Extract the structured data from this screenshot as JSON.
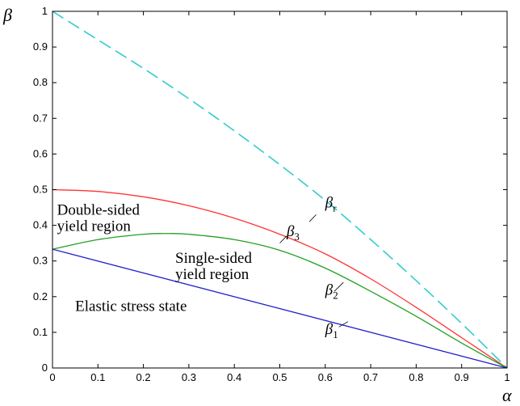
{
  "chart_data": {
    "type": "line",
    "xlabel": "α",
    "ylabel": "β",
    "xlim": [
      0,
      1
    ],
    "ylim": [
      0,
      1
    ],
    "xticks": [
      "0",
      "0.1",
      "0.2",
      "0.3",
      "0.4",
      "0.5",
      "0.6",
      "0.7",
      "0.8",
      "0.9",
      "1"
    ],
    "yticks": [
      "0",
      "0.1",
      "0.2",
      "0.3",
      "0.4",
      "0.5",
      "0.6",
      "0.7",
      "0.8",
      "0.9",
      "1"
    ],
    "grid": false,
    "series": [
      {
        "label": "β",
        "subscript": "r",
        "color": "#33cccc",
        "dash": "dashed",
        "x": [
          0,
          0.1,
          0.2,
          0.3,
          0.4,
          0.5,
          0.6,
          0.7,
          0.8,
          0.9,
          1.0
        ],
        "y": [
          1.0,
          0.92,
          0.84,
          0.755,
          0.665,
          0.57,
          0.47,
          0.36,
          0.245,
          0.125,
          0.0
        ]
      },
      {
        "label": "β",
        "subscript": "3",
        "color": "#ff3333",
        "dash": "solid",
        "x": [
          0,
          0.1,
          0.2,
          0.3,
          0.4,
          0.5,
          0.6,
          0.7,
          0.8,
          0.9,
          1.0
        ],
        "y": [
          0.5,
          0.495,
          0.48,
          0.455,
          0.42,
          0.375,
          0.32,
          0.25,
          0.17,
          0.085,
          0.0
        ]
      },
      {
        "label": "β",
        "subscript": "2",
        "color": "#22a022",
        "dash": "solid",
        "x": [
          0,
          0.1,
          0.2,
          0.25,
          0.3,
          0.4,
          0.5,
          0.6,
          0.7,
          0.8,
          0.9,
          1.0
        ],
        "y": [
          0.333,
          0.36,
          0.375,
          0.377,
          0.375,
          0.36,
          0.33,
          0.28,
          0.215,
          0.145,
          0.07,
          0.0
        ]
      },
      {
        "label": "β",
        "subscript": "1",
        "color": "#2222cc",
        "dash": "solid",
        "x": [
          0,
          1.0
        ],
        "y": [
          0.333,
          0.0
        ]
      }
    ],
    "annotations": [
      {
        "lines": [
          "Double-sided",
          "yield region"
        ],
        "x": 0.01,
        "y": 0.43
      },
      {
        "lines": [
          "Single-sided",
          "yield region"
        ],
        "x": 0.27,
        "y": 0.295
      },
      {
        "lines": [
          "Elastic stress state"
        ],
        "x": 0.05,
        "y": 0.16
      }
    ],
    "curve_labels": [
      {
        "subscript": "r",
        "x": 0.6,
        "y": 0.45,
        "leader": [
          0.58,
          0.43,
          0.565,
          0.41
        ]
      },
      {
        "subscript": "3",
        "x": 0.515,
        "y": 0.37,
        "leader": [
          0.515,
          0.37,
          0.5,
          0.35
        ]
      },
      {
        "subscript": "2",
        "x": 0.6,
        "y": 0.205,
        "leader": [
          0.62,
          0.215,
          0.64,
          0.24
        ]
      },
      {
        "subscript": "1",
        "x": 0.6,
        "y": 0.095,
        "leader": [
          0.63,
          0.115,
          0.65,
          0.13
        ]
      }
    ]
  }
}
